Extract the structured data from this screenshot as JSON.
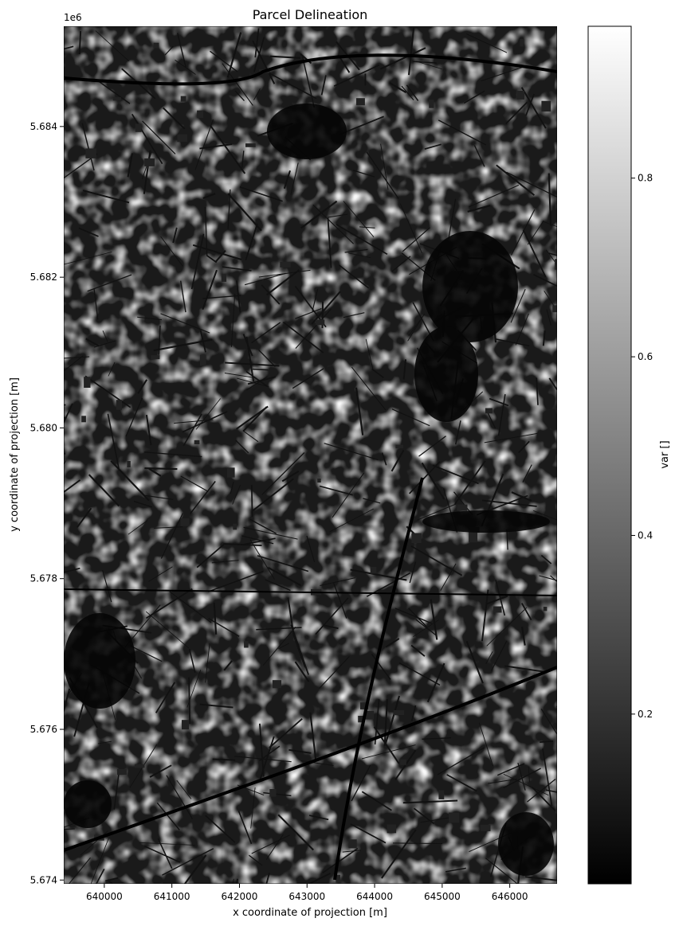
{
  "chart_data": {
    "type": "heatmap",
    "title": "Parcel Delineation",
    "xlabel": "x coordinate of projection [m]",
    "ylabel": "y coordinate of projection [m]",
    "y_offset_label": "1e6",
    "xlim": [
      639400,
      646700
    ],
    "ylim": [
      5.67395,
      5.68533
    ],
    "x_ticks": [
      640000,
      641000,
      642000,
      643000,
      644000,
      645000,
      646000
    ],
    "x_tick_labels": [
      "640000",
      "641000",
      "642000",
      "643000",
      "644000",
      "645000",
      "646000"
    ],
    "y_ticks": [
      5.674,
      5.676,
      5.678,
      5.68,
      5.682,
      5.684
    ],
    "y_tick_labels": [
      "5.674",
      "5.676",
      "5.678",
      "5.680",
      "5.682",
      "5.684"
    ],
    "colormap": "gray",
    "colorbar": {
      "label": "var []",
      "range": [
        0.01,
        0.97
      ],
      "ticks": [
        0.2,
        0.4,
        0.6,
        0.8
      ],
      "tick_labels": [
        "0.2",
        "0.4",
        "0.6",
        "0.8"
      ]
    },
    "grid": false,
    "legend": "none"
  }
}
